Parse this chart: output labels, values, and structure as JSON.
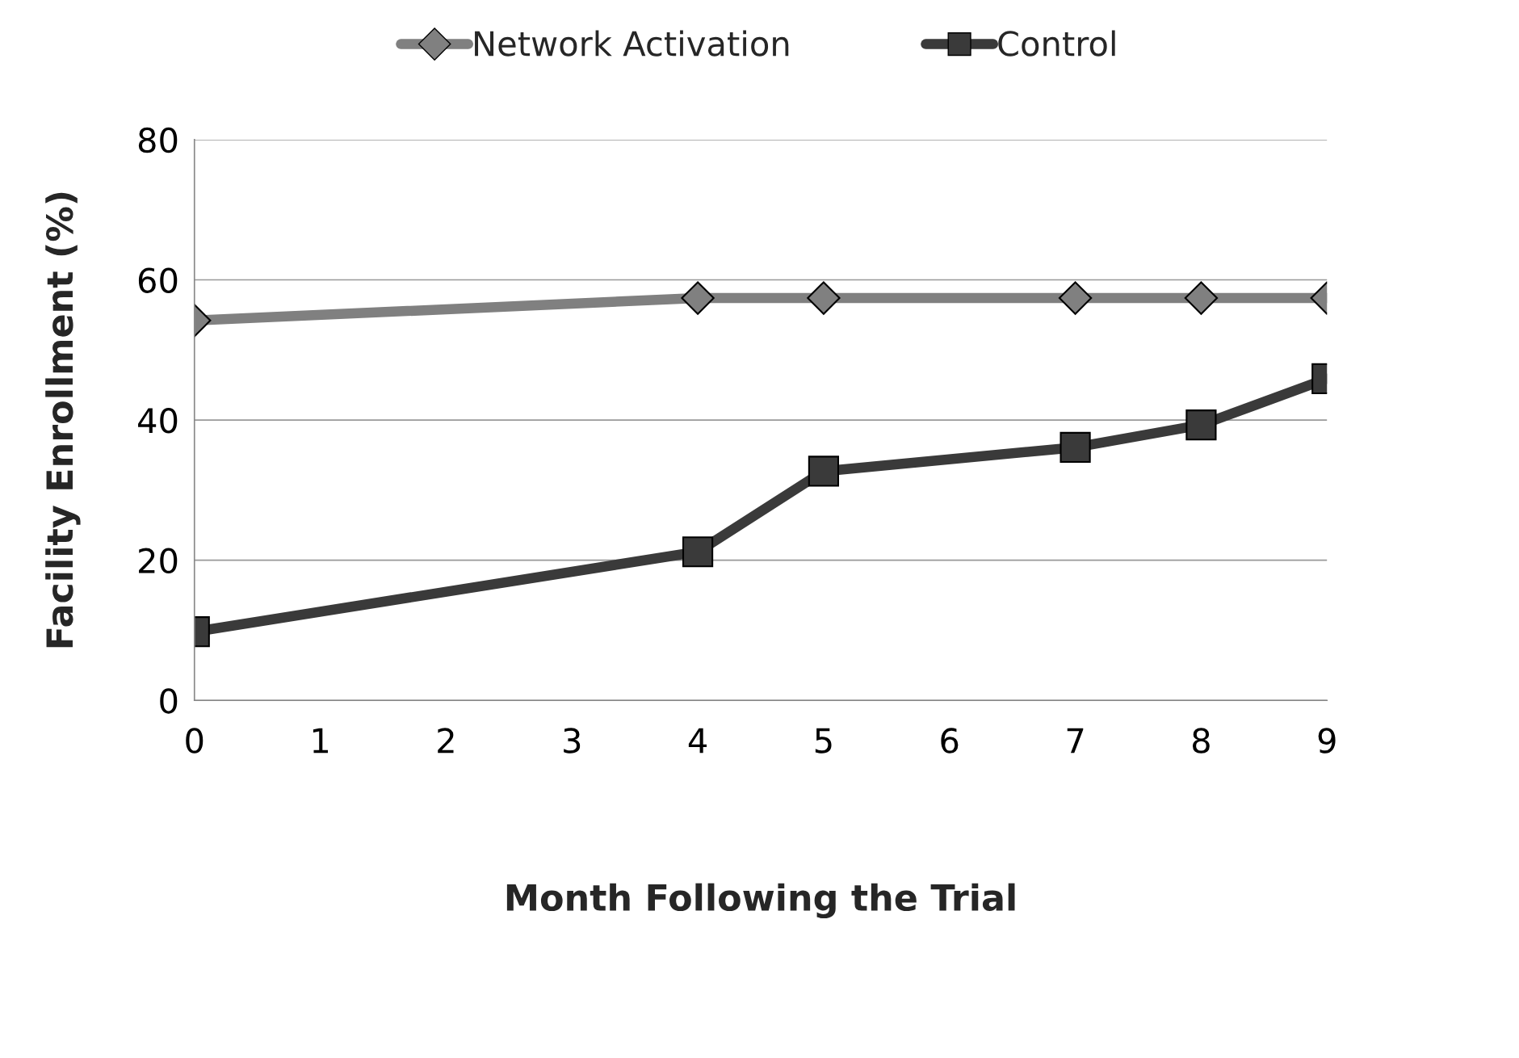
{
  "chart_data": {
    "type": "line",
    "xlabel": "Month Following the Trial",
    "ylabel": "Facility Enrollment (%)",
    "x": [
      0,
      4,
      5,
      7,
      8,
      9
    ],
    "series": [
      {
        "name": "Network Activation",
        "color": "#808080",
        "marker": "diamond",
        "values": [
          54.2,
          57.4,
          57.4,
          57.4,
          57.4,
          57.4
        ]
      },
      {
        "name": "Control",
        "color": "#3a3a3a",
        "marker": "square",
        "values": [
          9.8,
          21.2,
          32.7,
          36.1,
          39.3,
          45.9
        ]
      }
    ],
    "xlim": [
      0,
      9
    ],
    "xticks": [
      0,
      1,
      2,
      3,
      4,
      5,
      6,
      7,
      8,
      9
    ],
    "ylim": [
      0,
      80
    ],
    "yticks": [
      0,
      20,
      40,
      60,
      80
    ],
    "grid": "y",
    "legend": "top",
    "line_style": "solid"
  }
}
